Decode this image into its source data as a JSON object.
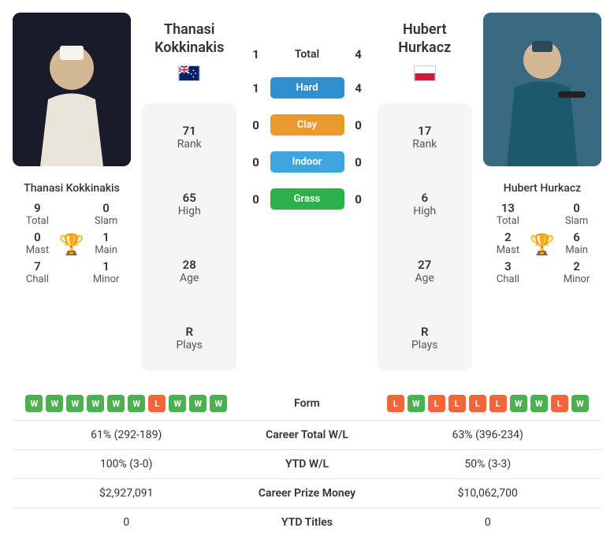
{
  "player1": {
    "name": "Thanasi Kokkinakis",
    "flag_colors": {
      "bg": "#012169",
      "stripes": "#ffffff",
      "cross": "#e4002b"
    },
    "rank": "71",
    "high": "65",
    "age": "28",
    "plays": "R",
    "titles": {
      "total": "9",
      "slam": "0",
      "mast": "0",
      "main": "1",
      "chall": "7",
      "minor": "1"
    },
    "career_wl": "61% (292-189)",
    "ytd_wl": "100% (3-0)",
    "prize": "$2,927,091",
    "ytd_titles": "0",
    "form": [
      "W",
      "W",
      "W",
      "W",
      "W",
      "W",
      "L",
      "W",
      "W",
      "W"
    ]
  },
  "player2": {
    "name": "Hubert Hurkacz",
    "flag_colors": {
      "top": "#ffffff",
      "bottom": "#dc143c"
    },
    "rank": "17",
    "high": "6",
    "age": "27",
    "plays": "R",
    "titles": {
      "total": "13",
      "slam": "0",
      "mast": "2",
      "main": "6",
      "chall": "3",
      "minor": "2"
    },
    "career_wl": "63% (396-234)",
    "ytd_wl": "50% (3-3)",
    "prize": "$10,062,700",
    "ytd_titles": "0",
    "form": [
      "L",
      "W",
      "L",
      "L",
      "L",
      "L",
      "W",
      "W",
      "L",
      "W"
    ]
  },
  "h2h": {
    "total": {
      "p1": "1",
      "p2": "4"
    },
    "hard": {
      "p1": "1",
      "p2": "4"
    },
    "clay": {
      "p1": "0",
      "p2": "0"
    },
    "indoor": {
      "p1": "0",
      "p2": "0"
    },
    "grass": {
      "p1": "0",
      "p2": "0"
    }
  },
  "labels": {
    "rank": "Rank",
    "high": "High",
    "age": "Age",
    "plays": "Plays",
    "total": "Total",
    "slam": "Slam",
    "mast": "Mast",
    "main": "Main",
    "chall": "Chall",
    "minor": "Minor",
    "h2h_total": "Total",
    "hard": "Hard",
    "clay": "Clay",
    "indoor": "Indoor",
    "grass": "Grass",
    "form": "Form",
    "career_wl": "Career Total W/L",
    "ytd_wl": "YTD W/L",
    "prize": "Career Prize Money",
    "ytd_titles": "YTD Titles"
  },
  "colors": {
    "hard": "#2f8fcf",
    "clay": "#e89a2e",
    "indoor": "#3fa4e0",
    "grass": "#2bb04a",
    "win": "#4caf50",
    "loss": "#f4663a",
    "trophy": "#5b8ac4",
    "card_bg": "#f5f5f5",
    "border": "#e5e5e5"
  }
}
